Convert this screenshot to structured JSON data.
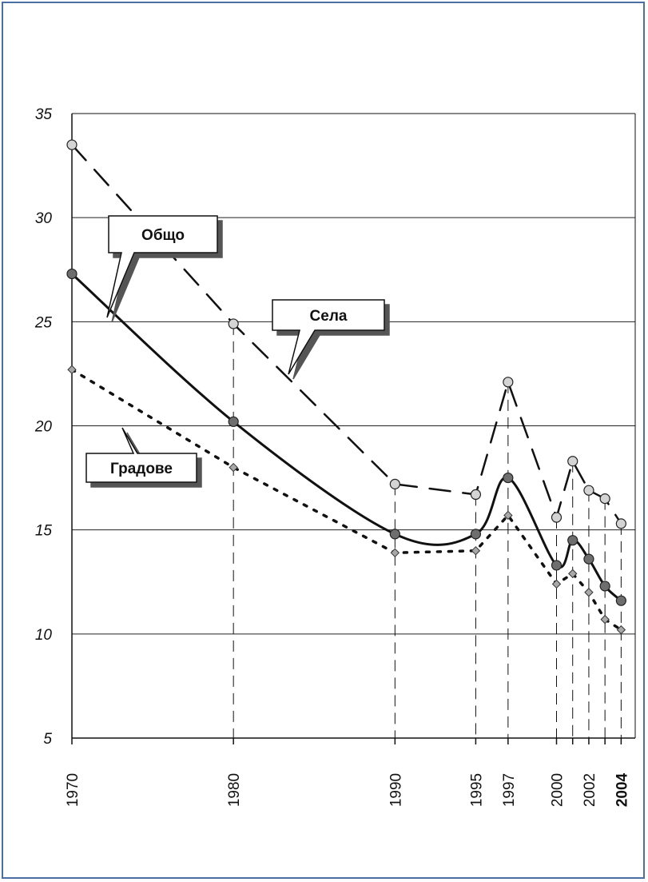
{
  "chart_data": {
    "type": "line",
    "title": "",
    "xlabel": "",
    "ylabel": "",
    "ylim": [
      5,
      35
    ],
    "yticks": [
      5,
      10,
      15,
      20,
      25,
      30,
      35
    ],
    "x_tick_labels": [
      "1970",
      "1980",
      "1990",
      "1995",
      "1997",
      "2000",
      "2002",
      "2004"
    ],
    "bold_tick_label": "2004",
    "grid": "horizontal",
    "series": [
      {
        "name": "Общо",
        "style": "solid",
        "color": "#111111",
        "marker": "dark-circle",
        "x": [
          1970,
          1980,
          1990,
          1995,
          1997,
          2000,
          2001,
          2002,
          2003,
          2004
        ],
        "values": [
          27.3,
          20.2,
          14.8,
          14.8,
          17.5,
          13.3,
          14.5,
          13.6,
          12.3,
          11.6
        ]
      },
      {
        "name": "Села",
        "style": "long-dash",
        "color": "#111111",
        "marker": "light-circle",
        "x": [
          1970,
          1980,
          1990,
          1995,
          1997,
          2000,
          2001,
          2002,
          2003,
          2004
        ],
        "values": [
          33.5,
          24.9,
          17.2,
          16.7,
          22.1,
          15.6,
          18.3,
          16.9,
          16.5,
          15.3
        ]
      },
      {
        "name": "Градове",
        "style": "dotted",
        "color": "#111111",
        "marker": "diamond",
        "x": [
          1970,
          1980,
          1990,
          1995,
          1997,
          2000,
          2001,
          2002,
          2003,
          2004
        ],
        "values": [
          22.7,
          18.0,
          13.9,
          14.0,
          15.7,
          12.4,
          12.9,
          12.0,
          10.7,
          10.2
        ]
      }
    ]
  },
  "callouts": {
    "total": "Общо",
    "villages": "Села",
    "towns": "Градове"
  },
  "colors": {
    "frame": "#4a6fa5",
    "grid": "#222222",
    "dark_marker": "#6e6e6e",
    "light_marker": "#d4d4d4",
    "diamond_marker": "#a8a8a8"
  }
}
